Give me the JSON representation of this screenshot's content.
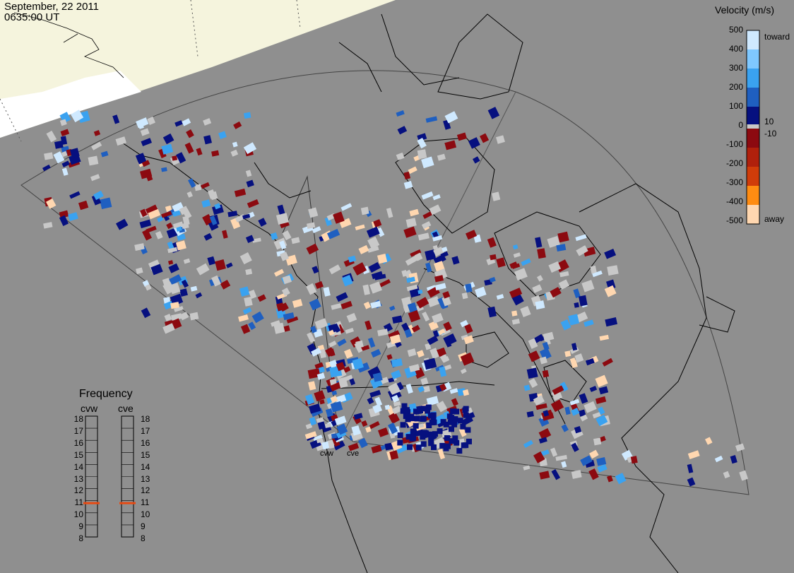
{
  "header": {
    "date": "September, 22 2011",
    "time": "0635:00 UT"
  },
  "radars": [
    "cvw",
    "cve"
  ],
  "velocity_scale": {
    "title": "Velocity (m/s)",
    "ticks": [
      "500",
      "400",
      "300",
      "200",
      "100",
      "0",
      "-100",
      "-200",
      "-300",
      "-400",
      "-500"
    ],
    "inner_ticks": [
      "10",
      "-10"
    ],
    "toward_label": "toward",
    "away_label": "away",
    "colors": {
      "toward_light": "#cfe9ff",
      "toward_mid": "#3aa2f0",
      "toward_strong": "#1f5fc0",
      "toward_dark": "#06107f",
      "gray": "#c8c8c8",
      "away_dark": "#8c0a10",
      "away_mid": "#d03c0a",
      "away_orange": "#ff8c12",
      "away_light": "#ffd7b0"
    }
  },
  "frequency": {
    "title": "Frequency",
    "columns": [
      "cvw",
      "cve"
    ],
    "ticks": [
      "18",
      "17",
      "16",
      "15",
      "14",
      "13",
      "12",
      "11",
      "10",
      "9",
      "8"
    ],
    "current_mhz": {
      "cvw": 10.8,
      "cve": 10.8
    }
  },
  "colors": {
    "background": "#8f8f8f",
    "land": "#f5f4dd",
    "ocean_outside": "#ffffff",
    "marker": "#e84a12"
  }
}
